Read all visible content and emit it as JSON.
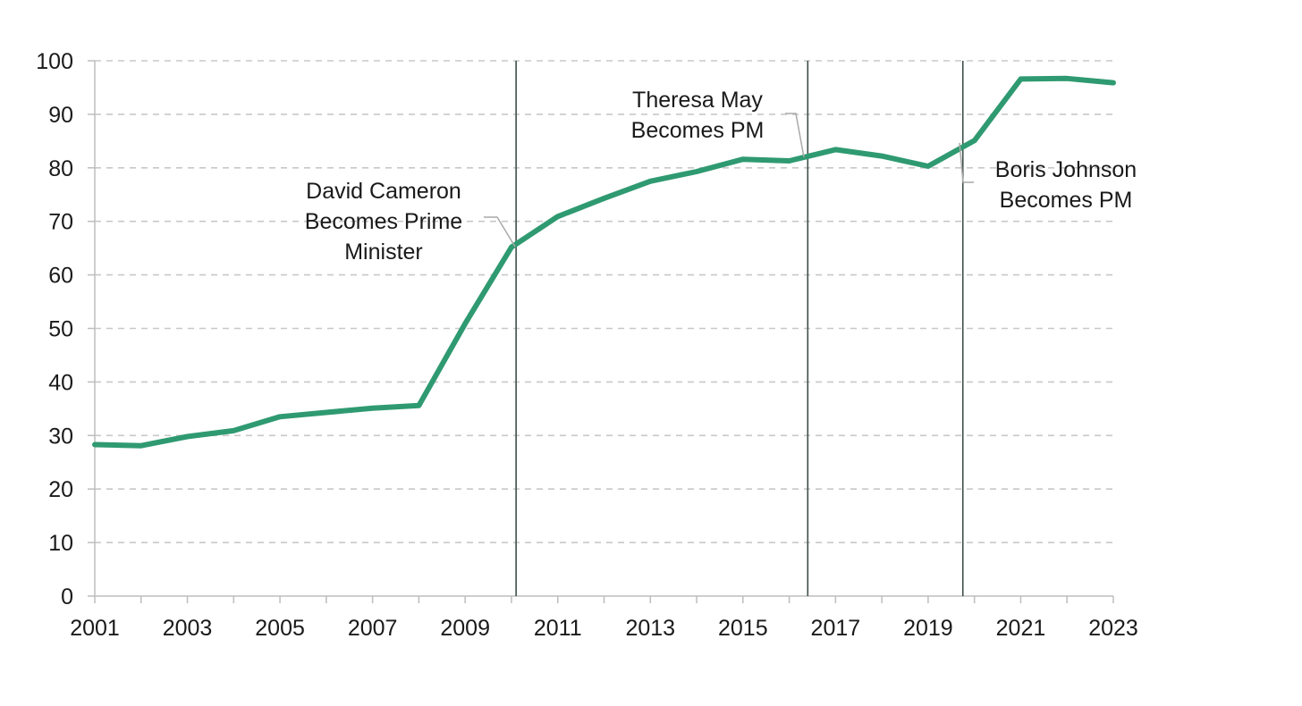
{
  "chart_data": {
    "type": "line",
    "title": "",
    "xlabel": "",
    "ylabel": "",
    "x": [
      2001,
      2002,
      2003,
      2004,
      2005,
      2006,
      2007,
      2008,
      2009,
      2010,
      2011,
      2012,
      2013,
      2014,
      2015,
      2016,
      2017,
      2018,
      2019,
      2020,
      2021,
      2022,
      2023
    ],
    "series": [
      {
        "values": [
          28.3,
          28.1,
          29.8,
          30.9,
          33.5,
          34.3,
          35.1,
          35.6,
          50.9,
          65.2,
          70.9,
          74.3,
          77.5,
          79.3,
          81.6,
          81.3,
          83.4,
          82.2,
          80.3,
          85.1,
          96.6,
          96.7,
          95.9
        ],
        "color": "#2f9a71"
      }
    ],
    "xlim": [
      2001,
      2023
    ],
    "ylim": [
      0,
      100
    ],
    "x_ticks": [
      "2001",
      "2003",
      "2005",
      "2007",
      "2009",
      "2011",
      "2013",
      "2015",
      "2017",
      "2019",
      "2021",
      "2023"
    ],
    "y_ticks": [
      "0",
      "10",
      "20",
      "30",
      "40",
      "50",
      "60",
      "70",
      "80",
      "90",
      "100"
    ],
    "grid": "horizontal dashed",
    "legend": "none",
    "annotations": [
      {
        "x": 2010.1,
        "lines": [
          "David Cameron",
          "Becomes Prime",
          "Minister"
        ]
      },
      {
        "x": 2016.4,
        "lines": [
          "Theresa May",
          "Becomes PM"
        ]
      },
      {
        "x": 2019.75,
        "lines": [
          "Boris Johnson",
          "Becomes PM"
        ]
      }
    ]
  }
}
